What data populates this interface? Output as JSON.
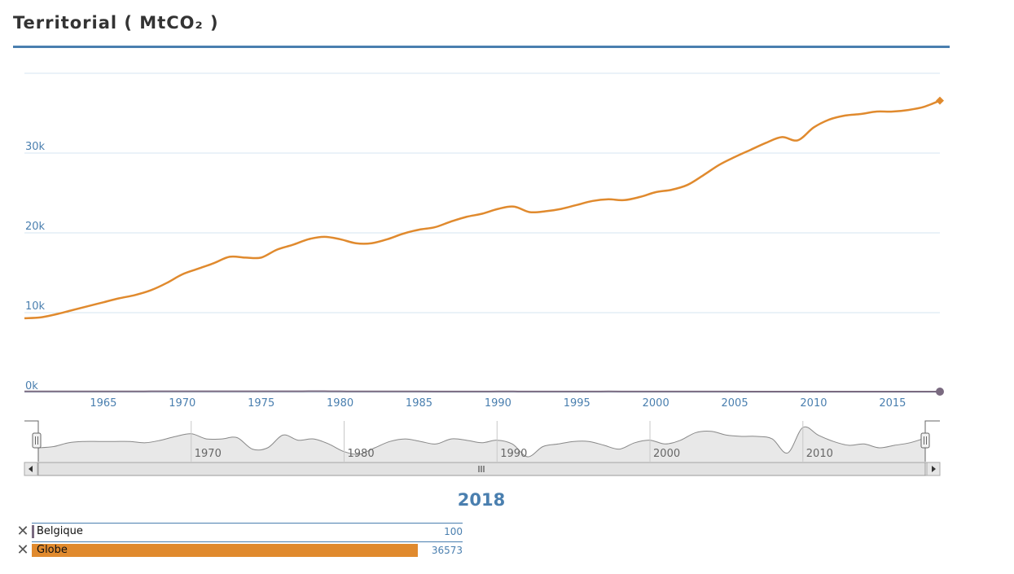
{
  "title": "Territorial ( MtCO₂ )",
  "year_label": "2018",
  "colors": {
    "accent": "#4a7faf",
    "globe": "#e08a2e",
    "belgique": "#7a6a80"
  },
  "chart_data": {
    "type": "line",
    "title": "Territorial ( MtCO₂ )",
    "xlim": [
      1960,
      2018
    ],
    "ylim": [
      0,
      40000
    ],
    "y_ticks": [
      0,
      10000,
      20000,
      30000
    ],
    "y_tick_labels": [
      "0k",
      "10k",
      "20k",
      "30k"
    ],
    "x_ticks": [
      1965,
      1970,
      1975,
      1980,
      1985,
      1990,
      1995,
      2000,
      2005,
      2010,
      2015
    ],
    "x": [
      1960,
      1961,
      1962,
      1963,
      1964,
      1965,
      1966,
      1967,
      1968,
      1969,
      1970,
      1971,
      1972,
      1973,
      1974,
      1975,
      1976,
      1977,
      1978,
      1979,
      1980,
      1981,
      1982,
      1983,
      1984,
      1985,
      1986,
      1987,
      1988,
      1989,
      1990,
      1991,
      1992,
      1993,
      1994,
      1995,
      1996,
      1997,
      1998,
      1999,
      2000,
      2001,
      2002,
      2003,
      2004,
      2005,
      2006,
      2007,
      2008,
      2009,
      2010,
      2011,
      2012,
      2013,
      2014,
      2015,
      2016,
      2017,
      2018
    ],
    "series": [
      {
        "name": "Globe",
        "color": "#e08a2e",
        "values": [
          9300,
          9400,
          9800,
          10300,
          10800,
          11300,
          11800,
          12200,
          12800,
          13700,
          14800,
          15500,
          16200,
          17000,
          16900,
          16900,
          17900,
          18500,
          19200,
          19500,
          19200,
          18700,
          18700,
          19200,
          19900,
          20400,
          20700,
          21400,
          22000,
          22400,
          23000,
          23300,
          22600,
          22700,
          23000,
          23500,
          24000,
          24200,
          24100,
          24500,
          25100,
          25400,
          26000,
          27200,
          28500,
          29500,
          30400,
          31300,
          32000,
          31600,
          33200,
          34200,
          34700,
          34900,
          35200,
          35200,
          35400,
          35800,
          36573
        ]
      },
      {
        "name": "Belgique",
        "color": "#7a6a80",
        "values": [
          130,
          131,
          132,
          133,
          134,
          135,
          136,
          137,
          138,
          139,
          140,
          141,
          142,
          143,
          144,
          145,
          146,
          147,
          148,
          149,
          140,
          135,
          128,
          124,
          120,
          118,
          117,
          116,
          115,
          116,
          118,
          118,
          116,
          114,
          115,
          116,
          117,
          118,
          117,
          116,
          115,
          114,
          112,
          110,
          110,
          108,
          106,
          104,
          102,
          100,
          100,
          100,
          100,
          100,
          100,
          100,
          100,
          100,
          100
        ]
      }
    ]
  },
  "navigator": {
    "tick_labels": [
      "1970",
      "1980",
      "1990",
      "2000",
      "2010"
    ]
  },
  "legend": [
    {
      "label": "Belgique",
      "value": "100",
      "color": "#7a6a80"
    },
    {
      "label": "Globe",
      "value": "36573",
      "color": "#e08a2e"
    }
  ]
}
